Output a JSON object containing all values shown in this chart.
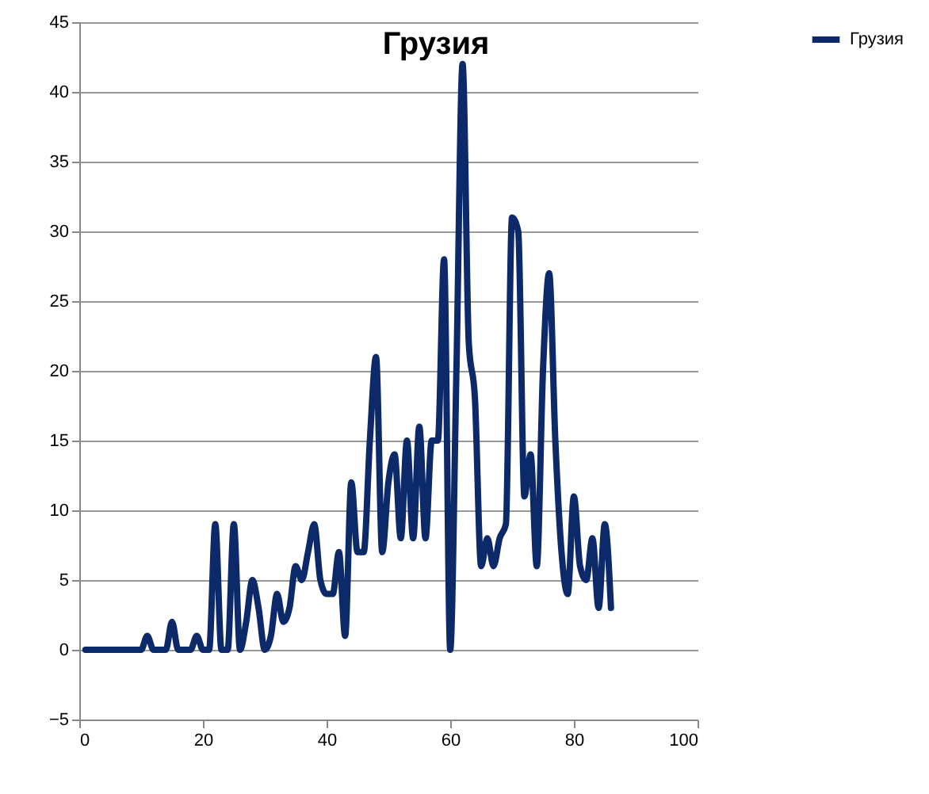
{
  "chart_data": {
    "type": "line",
    "title": "Грузия",
    "x": [
      1,
      2,
      3,
      4,
      5,
      6,
      7,
      8,
      9,
      10,
      11,
      12,
      13,
      14,
      15,
      16,
      17,
      18,
      19,
      20,
      21,
      22,
      23,
      24,
      25,
      26,
      27,
      28,
      29,
      30,
      31,
      32,
      33,
      34,
      35,
      36,
      37,
      38,
      39,
      40,
      41,
      42,
      43,
      44,
      45,
      46,
      47,
      48,
      49,
      50,
      51,
      52,
      53,
      54,
      55,
      56,
      57,
      58,
      59,
      60,
      61,
      62,
      63,
      64,
      65,
      66,
      67,
      68,
      69,
      70,
      71,
      72,
      73,
      74,
      75,
      76,
      77,
      78,
      79,
      80,
      81,
      82,
      83,
      84,
      85,
      86
    ],
    "series": [
      {
        "name": "Грузия",
        "color": "#0c2a6a",
        "values": [
          0,
          0,
          0,
          0,
          0,
          0,
          0,
          0,
          0,
          0,
          1,
          0,
          0,
          0,
          2,
          0,
          0,
          0,
          1,
          0,
          0,
          9,
          0,
          0,
          9,
          0,
          2,
          5,
          3,
          0,
          1,
          4,
          2,
          3,
          6,
          5,
          7,
          9,
          5,
          4,
          4,
          7,
          1,
          12,
          7,
          7,
          15,
          21,
          7,
          12,
          14,
          8,
          15,
          8,
          16,
          8,
          15,
          15,
          28,
          0,
          20,
          42,
          22,
          18,
          6,
          8,
          6,
          8,
          9,
          31,
          30,
          11,
          14,
          6,
          20,
          27,
          15,
          7,
          4,
          11,
          6,
          5,
          8,
          3,
          9,
          3
        ]
      }
    ],
    "xlim": [
      0,
      100
    ],
    "xticks": [
      0,
      20,
      40,
      60,
      80,
      100
    ],
    "ylim": [
      -5,
      45
    ],
    "yticks": [
      -5,
      0,
      5,
      10,
      15,
      20,
      25,
      30,
      35,
      40,
      45
    ],
    "grid": "y",
    "legend": "right",
    "marker": "none",
    "line_style": "solid"
  }
}
